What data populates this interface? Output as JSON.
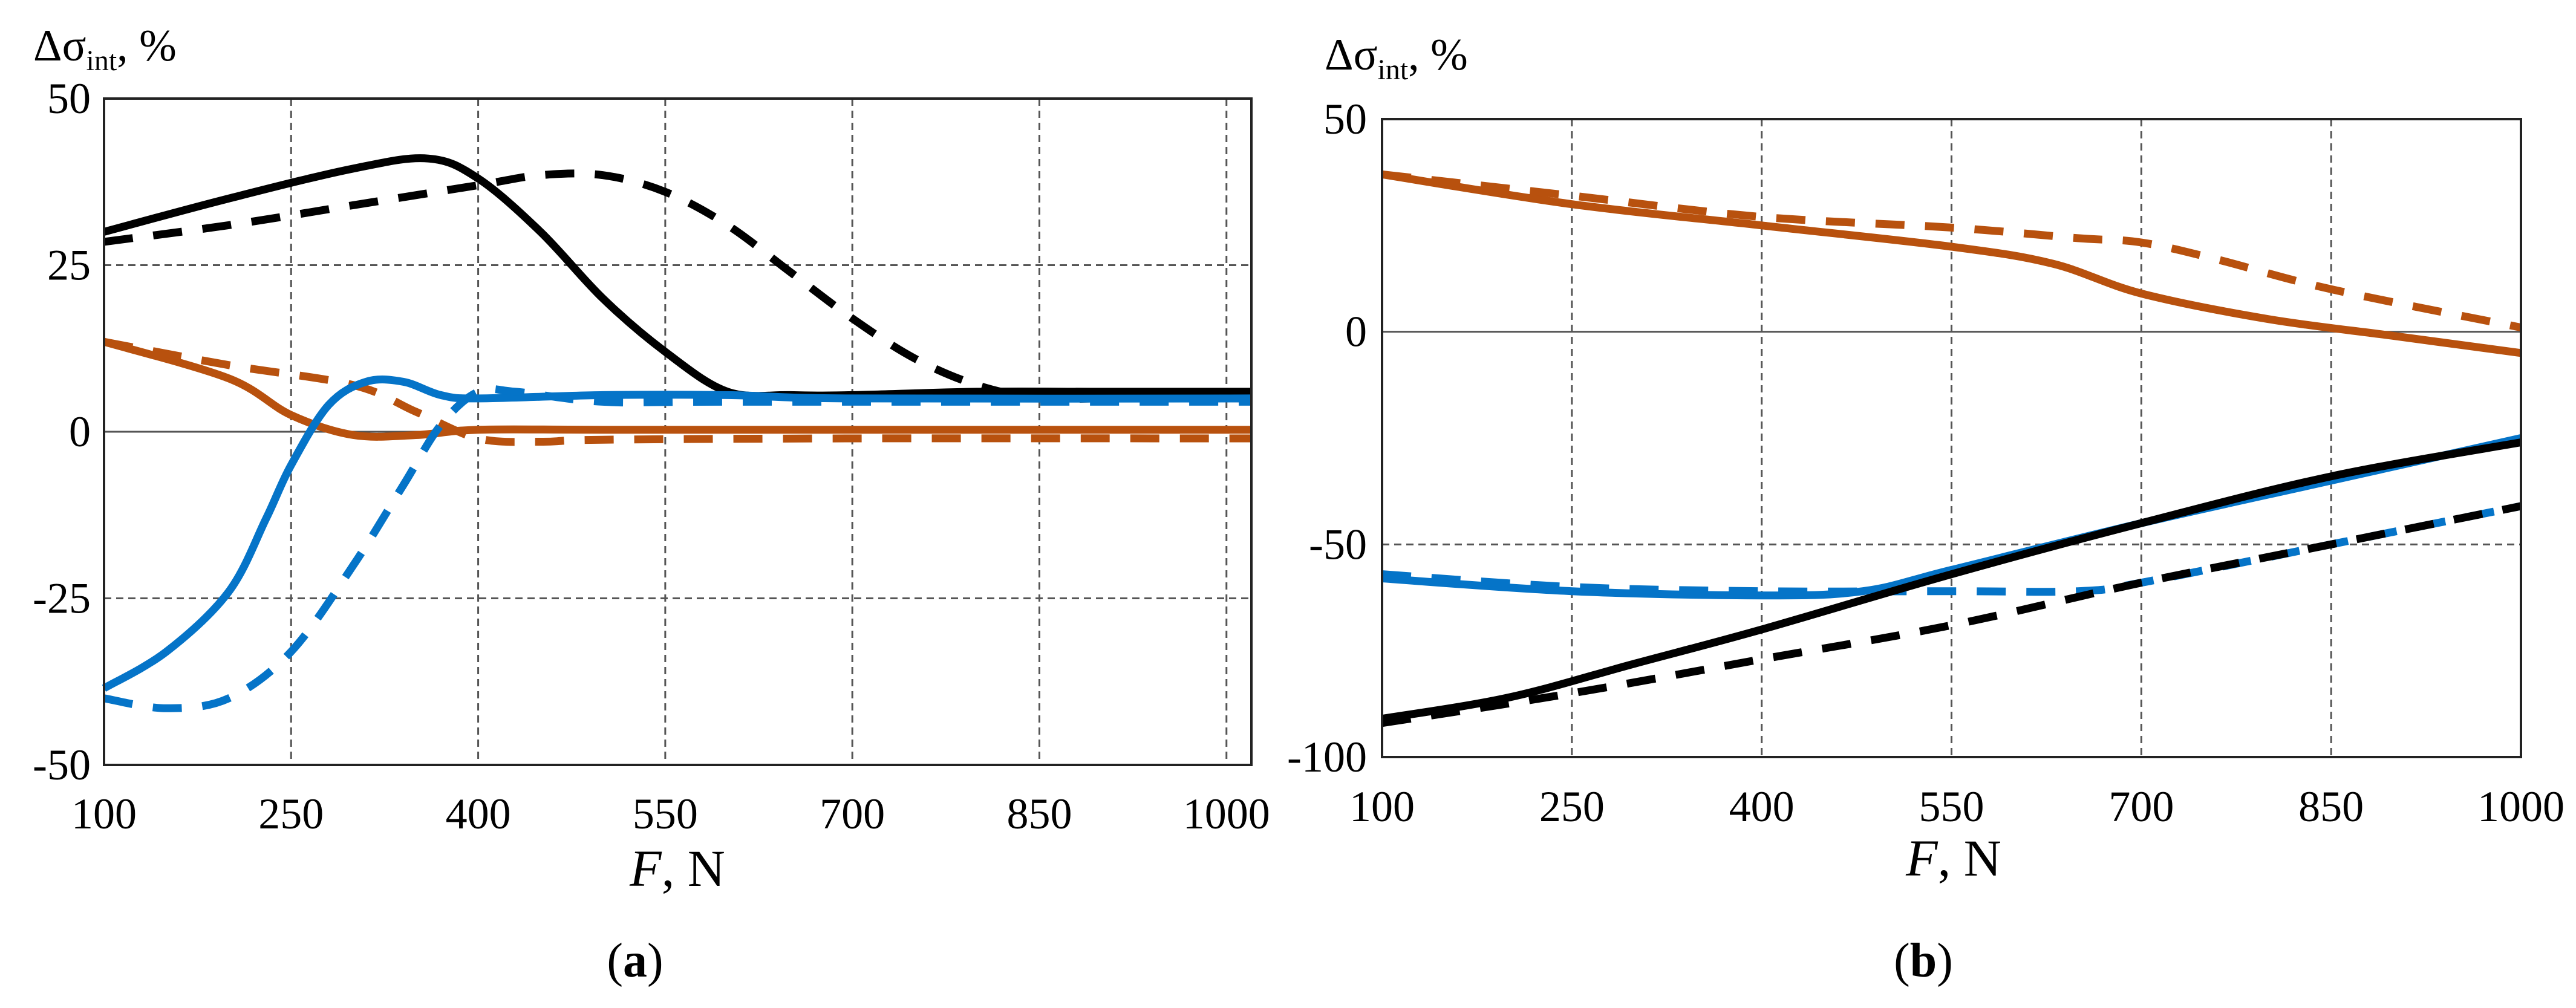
{
  "chart_data": [
    {
      "type": "line",
      "caption_letter": "a",
      "ylabel_symbol": "Δσ",
      "ylabel_sub": "int",
      "ylabel_unit": ", %",
      "xlabel_var": "F",
      "xlabel_unit": ", N",
      "xlim": [
        100,
        1020
      ],
      "ylim": [
        -50,
        50
      ],
      "xticks": [
        100,
        250,
        400,
        550,
        700,
        850,
        1000
      ],
      "yticks": [
        50,
        25,
        0,
        -25,
        -50
      ],
      "ytick_labels": [
        "50",
        "25",
        "0",
        "-25",
        "-50"
      ],
      "series": [
        {
          "name": "black-solid",
          "color": "#000000",
          "dash": false,
          "x": [
            100,
            200,
            300,
            360,
            400,
            450,
            500,
            550,
            600,
            650,
            700,
            800,
            900,
            1020
          ],
          "y": [
            30,
            35,
            39.5,
            41,
            38,
            30,
            20,
            12,
            6,
            5.5,
            5.5,
            6,
            6,
            6
          ]
        },
        {
          "name": "black-dashed",
          "color": "#000000",
          "dash": true,
          "x": [
            100,
            200,
            300,
            400,
            450,
            500,
            550,
            600,
            650,
            700,
            750,
            800,
            850,
            900,
            1020
          ],
          "y": [
            28.5,
            31,
            34,
            37,
            38.5,
            38.5,
            36,
            31,
            24,
            17,
            11,
            7,
            5,
            5,
            5
          ]
        },
        {
          "name": "orange-solid",
          "color": "#B8510E",
          "dash": false,
          "x": [
            100,
            200,
            250,
            300,
            350,
            400,
            500,
            700,
            1020
          ],
          "y": [
            13.5,
            8,
            2.5,
            -0.5,
            -0.5,
            0.3,
            0.3,
            0.3,
            0.3
          ]
        },
        {
          "name": "orange-dashed",
          "color": "#B8510E",
          "dash": true,
          "x": [
            100,
            200,
            300,
            350,
            400,
            450,
            500,
            700,
            1020
          ],
          "y": [
            13.5,
            10,
            7,
            3,
            -1,
            -1.5,
            -1.2,
            -1,
            -1
          ]
        },
        {
          "name": "blue-solid",
          "color": "#0574C8",
          "dash": false,
          "x": [
            100,
            150,
            200,
            230,
            250,
            280,
            310,
            340,
            370,
            400,
            500,
            600,
            700,
            1020
          ],
          "y": [
            -38.5,
            -33,
            -24,
            -13,
            -5,
            4,
            7.5,
            7.5,
            5.5,
            5,
            5.5,
            5.5,
            5,
            5
          ]
        },
        {
          "name": "blue-dashed",
          "color": "#0574C8",
          "dash": true,
          "x": [
            100,
            150,
            200,
            250,
            300,
            340,
            370,
            400,
            430,
            500,
            600,
            1020
          ],
          "y": [
            -40,
            -41.5,
            -40,
            -33,
            -20,
            -8,
            1,
            6,
            6,
            4.5,
            4.5,
            4.5
          ]
        }
      ]
    },
    {
      "type": "line",
      "caption_letter": "b",
      "ylabel_symbol": "Δσ",
      "ylabel_sub": "int",
      "ylabel_unit": ", %",
      "xlabel_var": "F",
      "xlabel_unit": ", N",
      "xlim": [
        100,
        1000
      ],
      "ylim": [
        -100,
        50
      ],
      "xticks": [
        100,
        250,
        400,
        550,
        700,
        850,
        1000
      ],
      "yticks": [
        50,
        0,
        -50,
        -100
      ],
      "ytick_labels": [
        "50",
        "0",
        "-50",
        "-100"
      ],
      "series": [
        {
          "name": "orange-solid",
          "color": "#B8510E",
          "dash": false,
          "x": [
            100,
            250,
            400,
            550,
            630,
            700,
            800,
            900,
            1000
          ],
          "y": [
            37,
            30,
            25,
            20,
            16,
            9,
            3,
            -1,
            -5
          ]
        },
        {
          "name": "orange-dashed",
          "color": "#B8510E",
          "dash": true,
          "x": [
            100,
            250,
            400,
            550,
            650,
            700,
            760,
            850,
            1000
          ],
          "y": [
            37,
            32,
            27,
            24.5,
            22,
            21,
            17,
            10,
            1
          ]
        },
        {
          "name": "blue-solid",
          "color": "#0574C8",
          "dash": false,
          "x": [
            100,
            250,
            400,
            480,
            550,
            700,
            850,
            1000
          ],
          "y": [
            -58,
            -61,
            -62,
            -61,
            -56,
            -45,
            -35,
            -25
          ]
        },
        {
          "name": "blue-dashed",
          "color": "#0574C8",
          "dash": true,
          "x": [
            100,
            250,
            400,
            550,
            650,
            700,
            850,
            1000
          ],
          "y": [
            -57,
            -60,
            -61,
            -61,
            -61,
            -59,
            -50,
            -41
          ]
        },
        {
          "name": "black-solid",
          "color": "#000000",
          "dash": false,
          "x": [
            100,
            200,
            300,
            400,
            550,
            700,
            850,
            1000
          ],
          "y": [
            -91,
            -86,
            -78,
            -70,
            -57,
            -45,
            -34,
            -26
          ]
        },
        {
          "name": "black-dashed",
          "color": "#000000",
          "dash": true,
          "x": [
            100,
            250,
            400,
            550,
            700,
            850,
            1000
          ],
          "y": [
            -92,
            -85,
            -77,
            -69,
            -59,
            -50,
            -41
          ]
        }
      ]
    }
  ]
}
